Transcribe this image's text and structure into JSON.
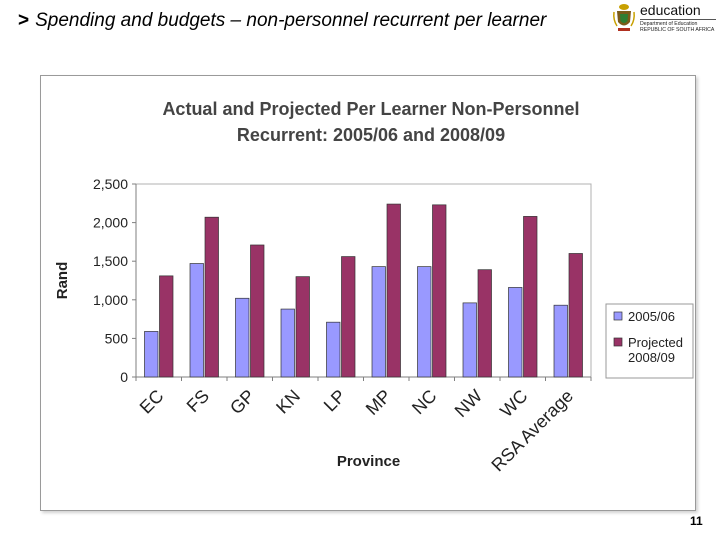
{
  "slide": {
    "bullet": ">",
    "title": "Spending and budgets – non-personnel recurrent per learner",
    "page_number": "11"
  },
  "logo": {
    "word": "education",
    "line1": "Department of Education",
    "line2": "REPUBLIC OF SOUTH AFRICA"
  },
  "colors": {
    "series_2005": "#9999ff",
    "series_2008": "#993366",
    "plot_background": "#ffffff",
    "frame_border": "#9a9a9a"
  },
  "chart_data": {
    "type": "bar",
    "title_lines": [
      "Actual and Projected Per Learner Non-Personnel",
      "Recurrent: 2005/06 and 2008/09"
    ],
    "xlabel": "Province",
    "ylabel": "Rand",
    "categories": [
      "EC",
      "FS",
      "GP",
      "KN",
      "LP",
      "MP",
      "NC",
      "NW",
      "WC",
      "RSA Average"
    ],
    "series": [
      {
        "name": "2005/06",
        "legend_lines": [
          "2005/06"
        ],
        "values": [
          590,
          1470,
          1020,
          880,
          710,
          1430,
          1430,
          960,
          1160,
          930
        ]
      },
      {
        "name": "Projected 2008/09",
        "legend_lines": [
          "Projected",
          "2008/09"
        ],
        "values": [
          1310,
          2070,
          1710,
          1300,
          1560,
          2240,
          2230,
          1390,
          2080,
          1600
        ]
      }
    ],
    "ylim": [
      0,
      2500
    ],
    "yticks": [
      0,
      500,
      1000,
      1500,
      2000,
      2500
    ],
    "ytick_labels": [
      "0",
      "500",
      "1,000",
      "1,500",
      "2,000",
      "2,500"
    ],
    "grid": false,
    "legend_position": "right"
  }
}
